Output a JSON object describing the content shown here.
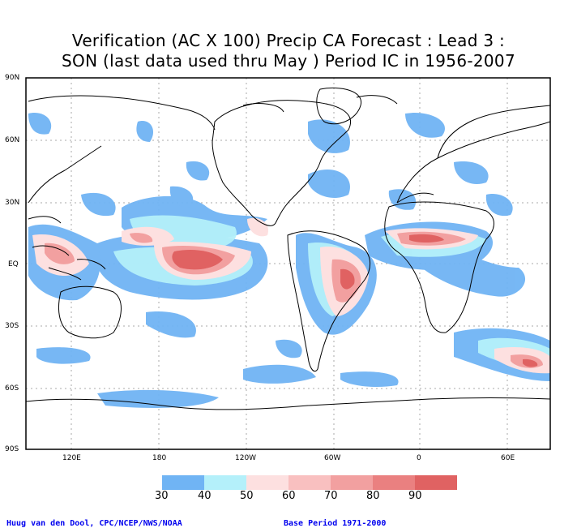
{
  "title": {
    "line1": "Verification (AC X 100) Precip CA Forecast : Lead 3 :",
    "line2": "SON (last data used thru May ) Period IC in 1956-2007"
  },
  "map": {
    "lat_labels": [
      "90N",
      "60N",
      "30N",
      "EQ",
      "30S",
      "60S",
      "90S"
    ],
    "lon_labels": [
      "120E",
      "180",
      "120W",
      "60W",
      "0",
      "60E"
    ],
    "gridlines": "dotted"
  },
  "colorbar": {
    "labels": [
      "30",
      "40",
      "50",
      "60",
      "70",
      "80",
      "90"
    ],
    "colors": [
      "#70b4f4",
      "#b4f0fa",
      "#fde0e0",
      "#f9c0c0",
      "#f2a0a0",
      "#ea8080",
      "#e06262"
    ]
  },
  "footer": {
    "left": "Huug van den Dool, CPC/NCEP/NWS/NOAA",
    "right": "Base Period 1971-2000"
  }
}
